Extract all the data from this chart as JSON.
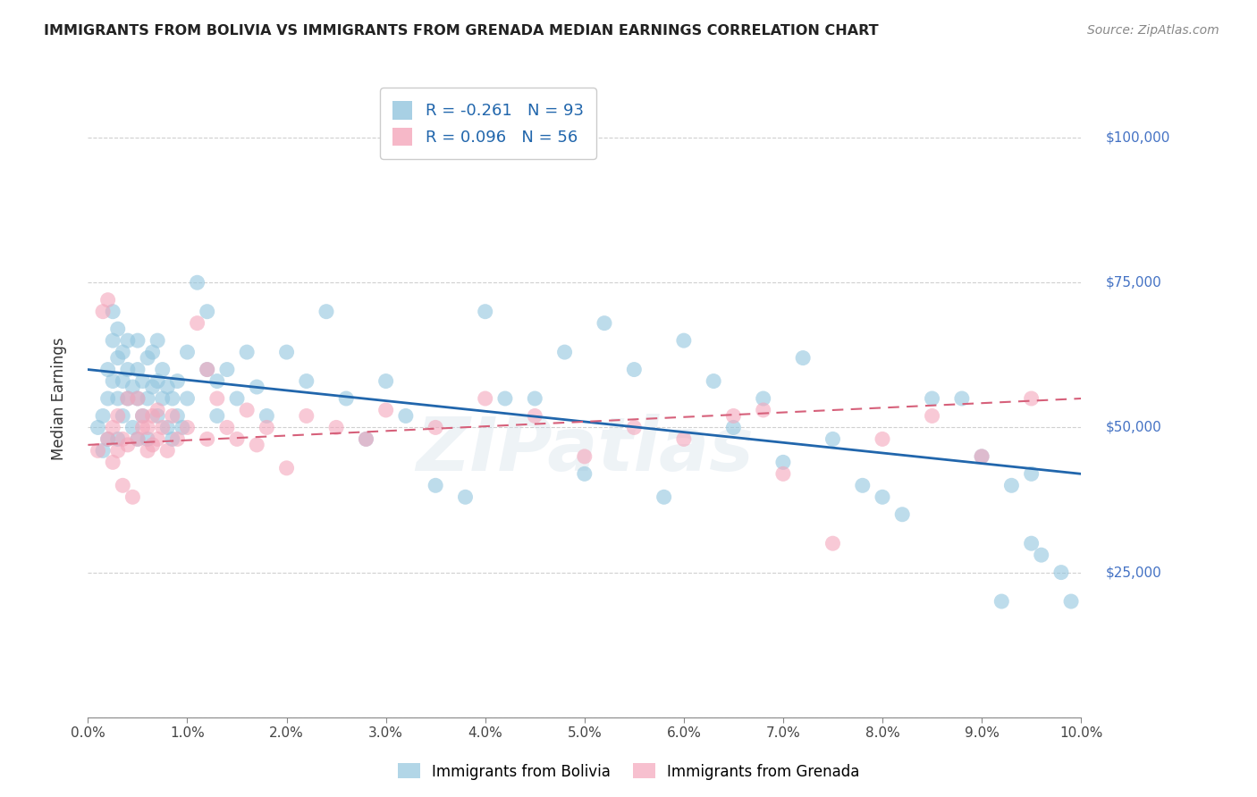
{
  "title": "IMMIGRANTS FROM BOLIVIA VS IMMIGRANTS FROM GRENADA MEDIAN EARNINGS CORRELATION CHART",
  "source": "Source: ZipAtlas.com",
  "ylabel": "Median Earnings",
  "yticks": [
    0,
    25000,
    50000,
    75000,
    100000
  ],
  "ytick_labels": [
    "",
    "$25,000",
    "$50,000",
    "$75,000",
    "$100,000"
  ],
  "xlim": [
    0.0,
    10.0
  ],
  "ylim": [
    10000,
    110000
  ],
  "bolivia_R": -0.261,
  "bolivia_N": 93,
  "grenada_R": 0.096,
  "grenada_N": 56,
  "bolivia_color": "#92c5de",
  "grenada_color": "#f4a6bb",
  "bolivia_line_color": "#2166ac",
  "grenada_line_color": "#d6607a",
  "ytick_color": "#4472c4",
  "grid_color": "#d0d0d0",
  "bolivia_line_x0": 0.0,
  "bolivia_line_y0": 60000,
  "bolivia_line_x1": 10.0,
  "bolivia_line_y1": 42000,
  "grenada_line_x0": 0.0,
  "grenada_line_y0": 47000,
  "grenada_line_x1": 10.0,
  "grenada_line_y1": 55000,
  "bolivia_x": [
    0.1,
    0.15,
    0.15,
    0.2,
    0.2,
    0.2,
    0.25,
    0.25,
    0.25,
    0.3,
    0.3,
    0.3,
    0.3,
    0.35,
    0.35,
    0.35,
    0.4,
    0.4,
    0.4,
    0.45,
    0.45,
    0.5,
    0.5,
    0.5,
    0.5,
    0.55,
    0.55,
    0.6,
    0.6,
    0.6,
    0.65,
    0.65,
    0.7,
    0.7,
    0.7,
    0.75,
    0.75,
    0.8,
    0.8,
    0.85,
    0.85,
    0.9,
    0.9,
    0.95,
    1.0,
    1.0,
    1.1,
    1.2,
    1.2,
    1.3,
    1.3,
    1.4,
    1.5,
    1.6,
    1.7,
    1.8,
    2.0,
    2.2,
    2.4,
    2.6,
    2.8,
    3.0,
    3.2,
    3.5,
    3.8,
    4.0,
    4.5,
    4.8,
    5.0,
    5.2,
    5.5,
    6.0,
    6.3,
    6.8,
    7.2,
    7.5,
    8.0,
    8.5,
    9.0,
    9.2,
    9.5,
    9.5,
    9.8,
    4.2,
    5.8,
    6.5,
    7.0,
    7.8,
    8.2,
    8.8,
    9.3,
    9.6,
    9.9
  ],
  "bolivia_y": [
    50000,
    46000,
    52000,
    48000,
    55000,
    60000,
    65000,
    58000,
    70000,
    48000,
    55000,
    62000,
    67000,
    52000,
    58000,
    63000,
    55000,
    60000,
    65000,
    50000,
    57000,
    48000,
    55000,
    60000,
    65000,
    52000,
    58000,
    48000,
    55000,
    62000,
    57000,
    63000,
    52000,
    58000,
    65000,
    55000,
    60000,
    50000,
    57000,
    48000,
    55000,
    52000,
    58000,
    50000,
    63000,
    55000,
    75000,
    70000,
    60000,
    58000,
    52000,
    60000,
    55000,
    63000,
    57000,
    52000,
    63000,
    58000,
    70000,
    55000,
    48000,
    58000,
    52000,
    40000,
    38000,
    70000,
    55000,
    63000,
    42000,
    68000,
    60000,
    65000,
    58000,
    55000,
    62000,
    48000,
    38000,
    55000,
    45000,
    20000,
    42000,
    30000,
    25000,
    55000,
    38000,
    50000,
    44000,
    40000,
    35000,
    55000,
    40000,
    28000,
    20000
  ],
  "grenada_x": [
    0.1,
    0.15,
    0.2,
    0.2,
    0.25,
    0.25,
    0.3,
    0.3,
    0.35,
    0.35,
    0.4,
    0.4,
    0.45,
    0.5,
    0.5,
    0.55,
    0.55,
    0.6,
    0.6,
    0.65,
    0.65,
    0.7,
    0.7,
    0.75,
    0.8,
    0.85,
    0.9,
    1.0,
    1.1,
    1.2,
    1.2,
    1.3,
    1.4,
    1.5,
    1.6,
    1.7,
    1.8,
    2.0,
    2.2,
    2.5,
    2.8,
    3.0,
    3.5,
    4.0,
    4.5,
    5.0,
    5.5,
    6.0,
    6.5,
    6.8,
    7.0,
    7.5,
    8.0,
    8.5,
    9.0,
    9.5
  ],
  "grenada_y": [
    46000,
    70000,
    72000,
    48000,
    50000,
    44000,
    52000,
    46000,
    40000,
    48000,
    55000,
    47000,
    38000,
    55000,
    48000,
    50000,
    52000,
    46000,
    50000,
    52000,
    47000,
    48000,
    53000,
    50000,
    46000,
    52000,
    48000,
    50000,
    68000,
    60000,
    48000,
    55000,
    50000,
    48000,
    53000,
    47000,
    50000,
    43000,
    52000,
    50000,
    48000,
    53000,
    50000,
    55000,
    52000,
    45000,
    50000,
    48000,
    52000,
    53000,
    42000,
    30000,
    48000,
    52000,
    45000,
    55000
  ]
}
